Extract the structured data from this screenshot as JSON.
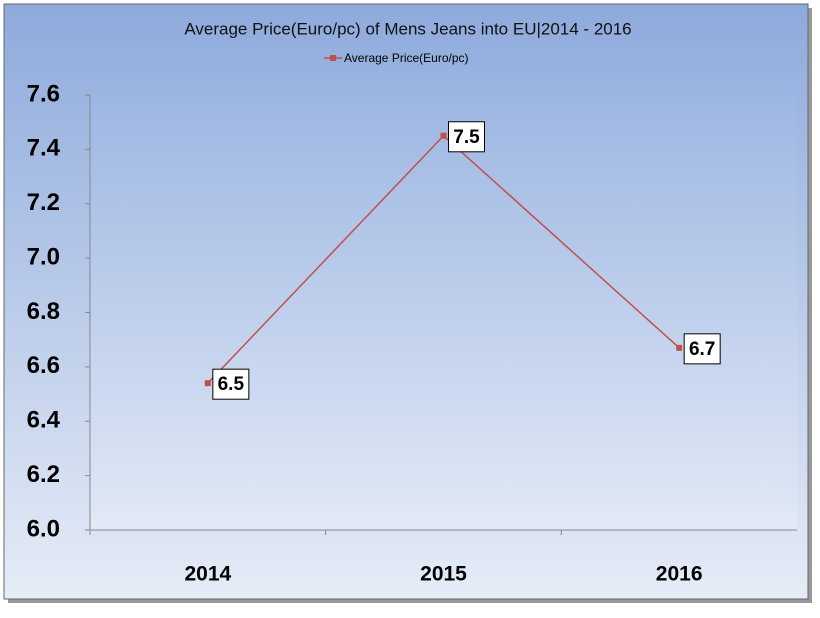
{
  "chart_data": {
    "type": "line",
    "title": "Average Price(Euro/pc) of Mens Jeans into EU|2014 - 2016",
    "categories": [
      "2014",
      "2015",
      "2016"
    ],
    "series": [
      {
        "name": "Average Price(Euro/pc)",
        "color": "#c0504d",
        "values": [
          6.54,
          7.45,
          6.67
        ],
        "value_labels": [
          "6.5",
          "7.5",
          "6.7"
        ]
      }
    ],
    "ylim": [
      6.0,
      7.6
    ],
    "yticks": [
      {
        "value": 6.0,
        "label": "6.0"
      },
      {
        "value": 6.2,
        "label": "6.2"
      },
      {
        "value": 6.4,
        "label": "6.4"
      },
      {
        "value": 6.6,
        "label": "6.6"
      },
      {
        "value": 6.8,
        "label": "6.8"
      },
      {
        "value": 7.0,
        "label": "7.0"
      },
      {
        "value": 7.2,
        "label": "7.2"
      },
      {
        "value": 7.4,
        "label": "7.4"
      },
      {
        "value": 7.6,
        "label": "7.6"
      }
    ],
    "legend": "top"
  }
}
